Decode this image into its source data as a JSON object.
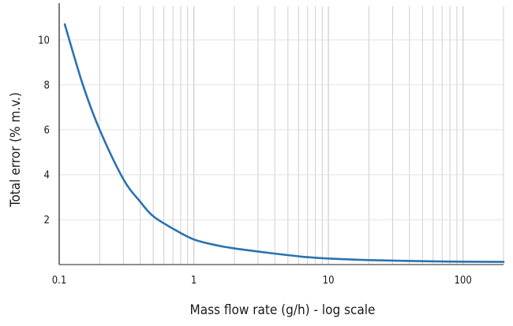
{
  "chart_data": {
    "type": "line",
    "title": "",
    "xlabel": "Mass flow rate (g/h) - log scale",
    "ylabel": "Total error (% m.v.)",
    "x_scale": "log",
    "xlim": [
      0.1,
      200
    ],
    "ylim": [
      0,
      11.5
    ],
    "x_ticks": [
      0.1,
      1,
      10,
      100
    ],
    "x_tick_labels": [
      "0.1",
      "1",
      "10",
      "100"
    ],
    "y_ticks": [
      2,
      4,
      6,
      8,
      10
    ],
    "y_tick_labels": [
      "2",
      "4",
      "6",
      "8",
      "10"
    ],
    "grid": "vertical log gridlines and y-tick horizontal gridlines",
    "line_color": "#2b72b0",
    "series": [
      {
        "x": [
          0.11,
          0.15,
          0.2,
          0.3,
          0.4,
          0.5,
          0.7,
          1,
          1.5,
          2,
          3,
          5,
          7,
          10,
          20,
          50,
          100,
          200
        ],
        "y": [
          10.7,
          8.0,
          6.0,
          3.8,
          2.8,
          2.15,
          1.6,
          1.12,
          0.85,
          0.72,
          0.58,
          0.42,
          0.33,
          0.27,
          0.2,
          0.15,
          0.13,
          0.12
        ]
      }
    ]
  }
}
